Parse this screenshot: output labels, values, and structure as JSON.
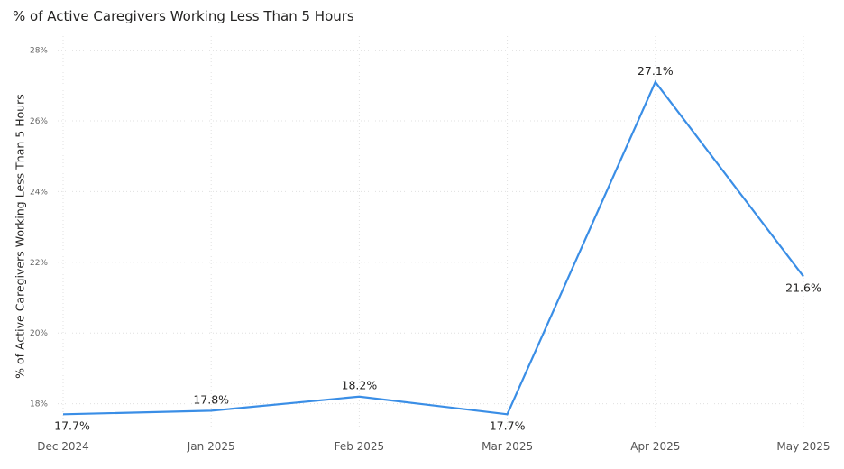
{
  "chart_data": {
    "type": "line",
    "title": "% of Active Caregivers Working Less Than 5 Hours",
    "xlabel": "",
    "ylabel": "% of Active Caregivers Working Less Than 5 Hours",
    "categories": [
      "Dec 2024",
      "Jan 2025",
      "Feb 2025",
      "Mar 2025",
      "Apr 2025",
      "May 2025"
    ],
    "series": [
      {
        "values": [
          17.7,
          17.8,
          18.2,
          17.7,
          27.1,
          21.6
        ],
        "labels": [
          "17.7%",
          "17.8%",
          "18.2%",
          "17.7%",
          "27.1%",
          "21.6%"
        ]
      }
    ],
    "y_ticks": [
      18,
      20,
      22,
      24,
      26,
      28
    ],
    "y_tick_labels": [
      "18%",
      "20%",
      "22%",
      "24%",
      "26%",
      "28%"
    ],
    "ylim": [
      17.3,
      28.4
    ],
    "grid": "dotted",
    "legend": "none",
    "colors": {
      "line": "#3a8ee6",
      "grid": "#e0e0e0",
      "text": "#252423"
    }
  }
}
